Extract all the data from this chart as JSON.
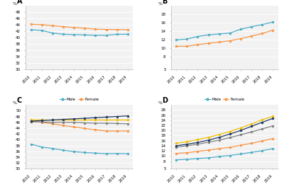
{
  "years": [
    2010,
    2011,
    2012,
    2013,
    2014,
    2015,
    2016,
    2017,
    2018,
    2019
  ],
  "A": {
    "title": "A",
    "male": [
      42.5,
      42.3,
      41.5,
      41.1,
      41.0,
      40.9,
      40.8,
      40.8,
      41.1,
      41.1
    ],
    "female": [
      44.2,
      44.1,
      43.8,
      43.5,
      43.2,
      43.0,
      42.7,
      42.6,
      42.6,
      42.5
    ],
    "ylim": [
      30,
      50
    ],
    "yticks": [
      30,
      32,
      34,
      36,
      38,
      40,
      42,
      44,
      46,
      48
    ]
  },
  "B": {
    "title": "B",
    "male": [
      12.0,
      12.2,
      12.8,
      13.2,
      13.4,
      13.6,
      14.5,
      15.1,
      15.6,
      16.2
    ],
    "female": [
      10.5,
      10.5,
      10.9,
      11.2,
      11.5,
      11.8,
      12.3,
      12.9,
      13.5,
      14.3
    ],
    "ylim": [
      5,
      20
    ],
    "yticks": [
      5,
      8,
      10,
      12,
      14,
      16,
      18
    ]
  },
  "C": {
    "title": "C",
    "age65_69": [
      38.5,
      37.5,
      37.0,
      36.4,
      35.9,
      35.6,
      35.4,
      35.2,
      35.3,
      35.2
    ],
    "age70_74": [
      46.3,
      46.0,
      45.5,
      44.9,
      44.4,
      43.9,
      43.4,
      43.0,
      43.0,
      43.0
    ],
    "age75_79": [
      46.2,
      46.1,
      46.0,
      46.0,
      46.0,
      45.8,
      45.7,
      45.7,
      45.6,
      45.5
    ],
    "age80_84": [
      47.0,
      47.0,
      47.0,
      47.0,
      47.0,
      47.0,
      47.0,
      47.0,
      47.0,
      47.0
    ],
    "age85": [
      46.4,
      46.6,
      46.8,
      47.0,
      47.2,
      47.4,
      47.6,
      47.8,
      48.0,
      48.2
    ],
    "ylim": [
      30,
      52
    ],
    "yticks": [
      30,
      32,
      34,
      36,
      38,
      40,
      42,
      44,
      46,
      48,
      50
    ]
  },
  "D": {
    "title": "D",
    "age65_69": [
      8.5,
      8.7,
      9.0,
      9.3,
      9.8,
      10.2,
      10.8,
      11.4,
      12.1,
      12.9
    ],
    "age70_74": [
      11.0,
      11.3,
      11.8,
      12.3,
      12.9,
      13.4,
      14.2,
      15.0,
      15.9,
      16.8
    ],
    "age75_79": [
      13.5,
      14.0,
      14.6,
      15.4,
      16.2,
      17.2,
      18.3,
      19.4,
      20.6,
      21.8
    ],
    "age80_84": [
      15.0,
      15.6,
      16.4,
      17.3,
      18.4,
      19.6,
      21.0,
      22.5,
      24.2,
      25.5
    ],
    "age85": [
      14.0,
      14.6,
      15.3,
      16.2,
      17.3,
      18.6,
      20.0,
      21.6,
      23.2,
      24.7
    ],
    "ylim": [
      5,
      30
    ],
    "yticks": [
      5,
      8,
      10,
      12,
      14,
      16,
      18,
      20,
      22,
      24,
      26,
      28
    ]
  },
  "colors": {
    "male": "#4bacc6",
    "female": "#f79646",
    "age65_69": "#4bacc6",
    "age70_74": "#f79646",
    "age75_79": "#808080",
    "age80_84": "#f0c000",
    "age85": "#1f3864"
  },
  "bg_color": "#f2f2f2"
}
